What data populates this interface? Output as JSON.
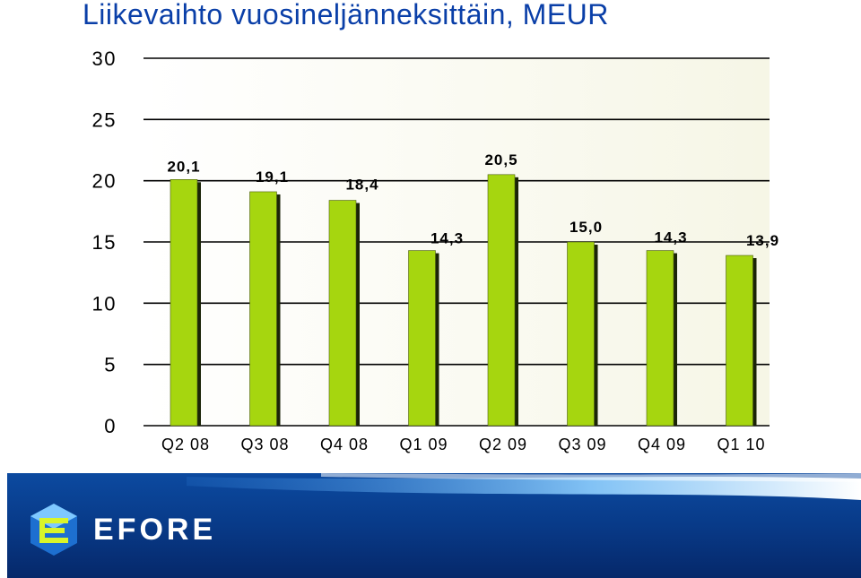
{
  "chart_data": {
    "type": "bar",
    "title": "Liikevaihto vuosineljänneksittäin, MEUR",
    "categories": [
      "Q2 08",
      "Q3 08",
      "Q4 08",
      "Q1 09",
      "Q2 09",
      "Q3 09",
      "Q4 09",
      "Q1 10"
    ],
    "values": [
      20.1,
      19.1,
      18.4,
      14.3,
      20.5,
      15.0,
      14.3,
      13.9
    ],
    "data_labels": [
      "20,1",
      "19,1",
      "18,4",
      "14,3",
      "20,5",
      "15,0",
      "14,3",
      "13,9"
    ],
    "yticks": [
      "0",
      "5",
      "10",
      "15",
      "20",
      "25",
      "30"
    ],
    "ylim": [
      0,
      30
    ],
    "grid": true,
    "bar_color": "#a6d60f",
    "xlabel": "",
    "ylabel": ""
  },
  "footer": {
    "logo_text": "EFORE",
    "logo_icon": "efore-logo-icon",
    "band_color": "#0a3f8c"
  }
}
